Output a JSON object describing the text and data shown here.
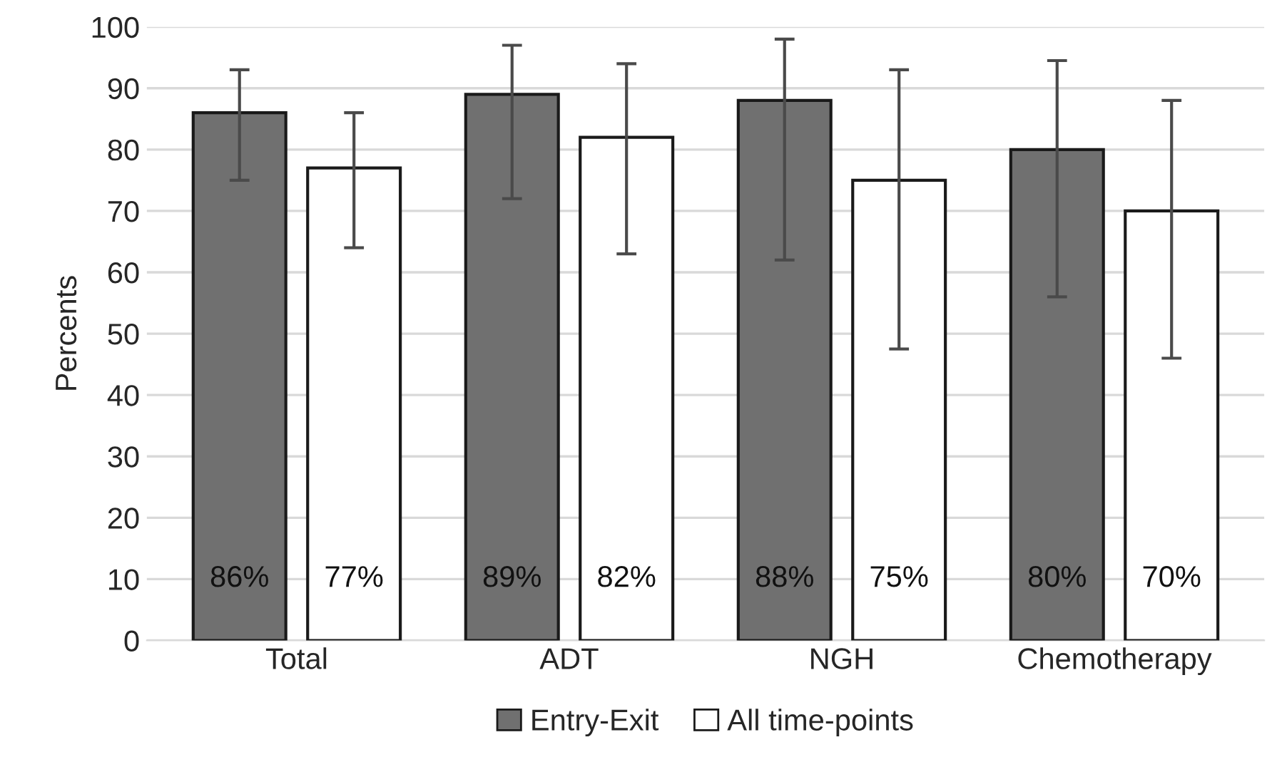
{
  "chart_data": {
    "type": "bar",
    "ylabel": "Percents",
    "categories": [
      "Total",
      "ADT",
      "NGH",
      "Chemotherapy"
    ],
    "series": [
      {
        "name": "Entry-Exit",
        "color": "#707070",
        "values": [
          86,
          89,
          88,
          80
        ],
        "value_labels": [
          "86%",
          "89%",
          "88%",
          "80%"
        ],
        "errors": [
          [
            75,
            93
          ],
          [
            72,
            97
          ],
          [
            62,
            98
          ],
          [
            56,
            94.5
          ]
        ]
      },
      {
        "name": "All time-points",
        "color": "#ffffff",
        "values": [
          77,
          82,
          75,
          70
        ],
        "value_labels": [
          "77%",
          "82%",
          "75%",
          "70%"
        ],
        "errors": [
          [
            64,
            86
          ],
          [
            63,
            94
          ],
          [
            47.5,
            93
          ],
          [
            46,
            88
          ]
        ]
      }
    ],
    "ylim": [
      0,
      100
    ],
    "yticks": [
      0,
      10,
      20,
      30,
      40,
      50,
      60,
      70,
      80,
      90,
      100
    ],
    "grid": "y",
    "legend": "bottom"
  }
}
